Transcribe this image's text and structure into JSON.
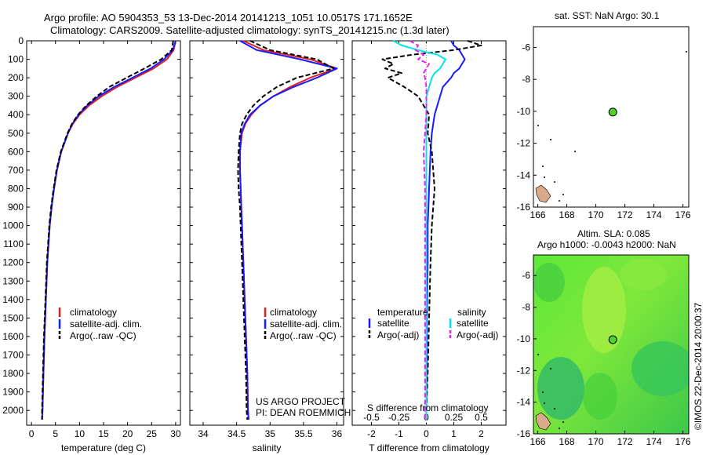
{
  "header": {
    "line1": "Argo profile: AO 5904353_53 13-Dec-2014 20141213_1051 10.0517S 171.1652E",
    "line2": "Climatology: CARS2009. Satellite-adjusted climatology: synTS_20141215.nc (1.3d later)"
  },
  "colors": {
    "climatology": "#e02020",
    "satellite": "#1a1aff",
    "argo": "#000000",
    "cyan": "#00e5ee",
    "magenta": "#ee22ee",
    "land": "#d9aa8a",
    "sla_bg": "#4cd42c"
  },
  "chart_data": [
    {
      "id": "temperature",
      "type": "line",
      "xlabel": "temperature (deg C)",
      "ylabel": "",
      "xlim": [
        -1,
        31
      ],
      "ylim": [
        2080,
        0
      ],
      "xticks": [
        0,
        5,
        10,
        15,
        20,
        25,
        30
      ],
      "yticks": [
        0,
        100,
        200,
        300,
        400,
        500,
        600,
        700,
        800,
        900,
        1000,
        1100,
        1200,
        1300,
        1400,
        1500,
        1600,
        1700,
        1800,
        1900,
        2000
      ],
      "depth": [
        0,
        50,
        100,
        150,
        200,
        250,
        300,
        350,
        400,
        450,
        500,
        600,
        700,
        800,
        900,
        1000,
        1200,
        1400,
        1600,
        1800,
        2000,
        2050
      ],
      "series": [
        {
          "name": "climatology",
          "color": "#e02020",
          "values": [
            30,
            29.6,
            28.2,
            25.4,
            21.6,
            17.8,
            14.6,
            12,
            10,
            8.6,
            7.6,
            6.2,
            5.3,
            4.7,
            4.2,
            3.8,
            3.3,
            3,
            2.7,
            2.5,
            2.3,
            2.2
          ]
        },
        {
          "name": "satellite-adj. clim.",
          "color": "#1a1aff",
          "values": [
            30,
            29.4,
            27.6,
            24.8,
            21,
            17.2,
            14,
            11.6,
            9.8,
            8.5,
            7.6,
            6.2,
            5.3,
            4.7,
            4.2,
            3.8,
            3.3,
            3,
            2.7,
            2.5,
            2.3,
            2.2
          ]
        },
        {
          "name": "Argo(..raw -QC)",
          "color": "#000000",
          "dashed": true,
          "values": [
            29.5,
            29.2,
            27,
            23.5,
            19.8,
            16.2,
            13.6,
            11.4,
            9.7,
            8.4,
            7.5,
            6.1,
            5.2,
            4.6,
            4.1,
            3.7,
            3.2,
            2.9,
            2.6,
            2.4,
            2.2,
            2.2
          ]
        }
      ],
      "legend": [
        "climatology",
        "satellite-adj. clim.",
        "Argo(..raw -QC)"
      ],
      "legend_position": "lower-middle"
    },
    {
      "id": "salinity",
      "type": "line",
      "xlabel": "salinity",
      "ylabel": "",
      "xlim": [
        33.8,
        36.1
      ],
      "ylim": [
        2080,
        0
      ],
      "xticks": [
        34,
        34.5,
        35,
        35.5,
        36
      ],
      "depth": [
        0,
        50,
        100,
        150,
        200,
        250,
        300,
        350,
        400,
        450,
        500,
        600,
        700,
        800,
        900,
        1000,
        1200,
        1400,
        1600,
        1800,
        2000,
        2050
      ],
      "series": [
        {
          "name": "climatology",
          "color": "#e02020",
          "values": [
            34.6,
            34.9,
            35.6,
            36.0,
            35.6,
            35.3,
            35.05,
            34.85,
            34.72,
            34.63,
            34.58,
            34.55,
            34.55,
            34.56,
            34.57,
            34.58,
            34.6,
            34.62,
            34.64,
            34.66,
            34.67,
            34.68
          ]
        },
        {
          "name": "satellite-adj. clim.",
          "color": "#1a1aff",
          "values": [
            34.55,
            34.8,
            35.45,
            36.0,
            35.7,
            35.35,
            35.05,
            34.85,
            34.7,
            34.62,
            34.57,
            34.55,
            34.55,
            34.56,
            34.57,
            34.58,
            34.6,
            34.62,
            34.64,
            34.66,
            34.67,
            34.68
          ]
        },
        {
          "name": "Argo(..raw -QC)",
          "color": "#000000",
          "dashed": true,
          "values": [
            34.7,
            35.0,
            35.7,
            35.95,
            35.4,
            35.1,
            34.9,
            34.75,
            34.65,
            34.58,
            34.55,
            34.53,
            34.52,
            34.53,
            34.55,
            34.56,
            34.58,
            34.6,
            34.62,
            34.64,
            34.65,
            34.66
          ]
        }
      ],
      "legend": [
        "climatology",
        "satellite-adj. clim.",
        "Argo(..raw -QC)"
      ],
      "legend_position": "lower-middle",
      "annotation": [
        "US ARGO PROJECT",
        "PI: DEAN ROEMMICH"
      ]
    },
    {
      "id": "difference",
      "type": "line",
      "xlabel": "T difference from climatology",
      "x2label": "S difference from climatology",
      "xlim": [
        -2.7,
        2.9
      ],
      "ylim": [
        2080,
        0
      ],
      "xticks": [
        -2,
        -1,
        0,
        1,
        2
      ],
      "x2ticks": [
        -0.5,
        -0.25,
        0,
        0.25,
        0.5
      ],
      "x2tick_labels": [
        "-0.5",
        "-0.25",
        "0",
        "0.25",
        "0.5"
      ],
      "depth": [
        0,
        25,
        50,
        75,
        100,
        125,
        150,
        175,
        200,
        250,
        300,
        400,
        500,
        600,
        800,
        1000,
        1200,
        1500,
        1800,
        2000,
        2050
      ],
      "series": [
        {
          "name": "temperature satellite",
          "color": "#1a1aff",
          "values": [
            0.9,
            1.0,
            1.2,
            1.3,
            1.4,
            1.3,
            1.2,
            1.0,
            0.9,
            0.6,
            0.5,
            0.3,
            0.2,
            0.15,
            0.1,
            0.05,
            0.05,
            0.02,
            0.02,
            0.0,
            0.0
          ]
        },
        {
          "name": "temperature Argo(-adj)",
          "color": "#000000",
          "dashed": true,
          "values": [
            1.5,
            2.0,
            1.0,
            -0.5,
            -1.6,
            -1.2,
            -1.5,
            -0.9,
            -1.4,
            -0.8,
            -0.3,
            0.1,
            0.05,
            0.2,
            0.3,
            0.2,
            0.15,
            0.1,
            0.05,
            0.0,
            0.0
          ]
        },
        {
          "name": "salinity satellite",
          "color": "#00e5ee",
          "values": [
            -1.2,
            -0.9,
            -0.3,
            0.4,
            0.7,
            0.6,
            0.5,
            0.3,
            0.2,
            0.1,
            0.0,
            0.0,
            0.0,
            0.0,
            0.0,
            0.0,
            0.0,
            0.0,
            0.0,
            0.0,
            0.0
          ]
        },
        {
          "name": "salinity Argo(-adj)",
          "color": "#ee22ee",
          "dashed": true,
          "values": [
            -0.6,
            -0.3,
            -0.4,
            -0.1,
            -0.3,
            0.1,
            0.0,
            -0.1,
            -0.05,
            0.0,
            0.0,
            0.0,
            -0.05,
            -0.1,
            -0.05,
            -0.05,
            -0.05,
            -0.05,
            -0.05,
            -0.05,
            -0.05
          ]
        }
      ],
      "legend_headers": [
        "temperature",
        "salinity"
      ],
      "legend": [
        "satellite",
        "Argo(-adj)",
        "satellite",
        "Argo(-adj)"
      ],
      "legend_position": "lower-middle"
    },
    {
      "id": "sst_map",
      "type": "scatter",
      "title": "sat. SST: NaN Argo: 30.1",
      "xlim": [
        165.7,
        176.4
      ],
      "ylim": [
        -16,
        -4.7
      ],
      "xticks": [
        166,
        168,
        170,
        172,
        174,
        176
      ],
      "yticks": [
        -6,
        -8,
        -10,
        -12,
        -14,
        -16
      ],
      "points": [
        {
          "x": 171.17,
          "y": -10.05,
          "color": "#4cd42c"
        }
      ]
    },
    {
      "id": "sla_map",
      "type": "heatmap",
      "title_line1": "Altim. SLA: 0.085",
      "title_line2": "Argo h1000: -0.0043 h2000: NaN",
      "xlim": [
        165.7,
        176.4
      ],
      "ylim": [
        -16,
        -4.7
      ],
      "xticks": [
        166,
        168,
        170,
        172,
        174,
        176
      ],
      "yticks": [
        -6,
        -8,
        -10,
        -12,
        -14,
        -16
      ],
      "points": [
        {
          "x": 171.17,
          "y": -10.05,
          "color": "#4cd42c"
        }
      ]
    }
  ],
  "footer": {
    "credit": "©IMOS 22-Dec-2014 20:00:37"
  }
}
